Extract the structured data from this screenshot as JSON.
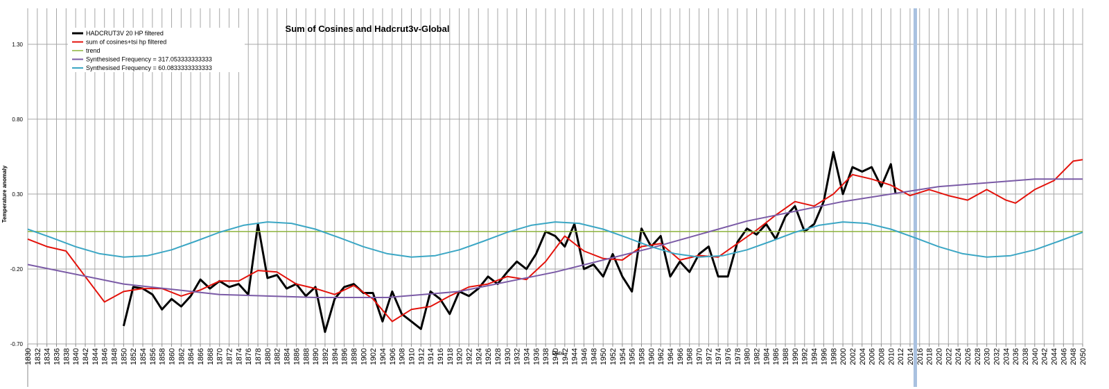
{
  "chart_data": {
    "type": "line",
    "title": "Sum of Cosines and Hadcrut3v-Global",
    "x_label": "Date",
    "y_label": "Temperature anomaly",
    "xlim": [
      1830,
      2050
    ],
    "xticks": [
      1830,
      1832,
      1834,
      1836,
      1838,
      1840,
      1842,
      1844,
      1846,
      1848,
      1850,
      1852,
      1854,
      1856,
      1858,
      1860,
      1862,
      1864,
      1866,
      1868,
      1870,
      1872,
      1874,
      1876,
      1878,
      1880,
      1882,
      1884,
      1886,
      1888,
      1890,
      1892,
      1894,
      1896,
      1898,
      1900,
      1902,
      1904,
      1906,
      1908,
      1910,
      1912,
      1914,
      1916,
      1918,
      1920,
      1922,
      1924,
      1926,
      1928,
      1930,
      1932,
      1934,
      1936,
      1938,
      1940,
      1942,
      1944,
      1946,
      1948,
      1950,
      1952,
      1954,
      1956,
      1958,
      1960,
      1962,
      1964,
      1966,
      1968,
      1970,
      1972,
      1974,
      1976,
      1978,
      1980,
      1982,
      1984,
      1986,
      1988,
      1990,
      1992,
      1994,
      1996,
      1998,
      2000,
      2002,
      2004,
      2006,
      2008,
      2010,
      2012,
      2014,
      2016,
      2018,
      2020,
      2022,
      2024,
      2026,
      2028,
      2030,
      2032,
      2034,
      2036,
      2038,
      2040,
      2042,
      2044,
      2046,
      2048,
      2050
    ],
    "ylim": [
      -0.7,
      1.54
    ],
    "yticks": [
      {
        "value": -0.7,
        "label": "-0.70"
      },
      {
        "value": -0.2,
        "label": "-0.20"
      },
      {
        "value": 0.3,
        "label": "0.30"
      },
      {
        "value": 0.8,
        "label": "0.80"
      },
      {
        "value": 1.3,
        "label": "1.30"
      }
    ],
    "grid": true,
    "legend": "upper left",
    "series": [
      {
        "name": "HADCRUT3V 20  HP filtered",
        "color": "#000000",
        "width": 3,
        "x": [
          1850,
          1852,
          1854,
          1856,
          1858,
          1860,
          1862,
          1864,
          1866,
          1868,
          1870,
          1872,
          1874,
          1876,
          1878,
          1880,
          1882,
          1884,
          1886,
          1888,
          1890,
          1892,
          1894,
          1896,
          1898,
          1900,
          1902,
          1904,
          1906,
          1908,
          1910,
          1912,
          1914,
          1916,
          1918,
          1920,
          1922,
          1924,
          1926,
          1928,
          1930,
          1932,
          1934,
          1936,
          1938,
          1940,
          1942,
          1944,
          1946,
          1948,
          1950,
          1952,
          1954,
          1956,
          1958,
          1960,
          1962,
          1964,
          1966,
          1968,
          1970,
          1972,
          1974,
          1976,
          1978,
          1980,
          1982,
          1984,
          1986,
          1988,
          1990,
          1992,
          1994,
          1996,
          1998,
          2000,
          2002,
          2004,
          2006,
          2008,
          2010,
          2011
        ],
        "values": [
          -0.58,
          -0.32,
          -0.33,
          -0.37,
          -0.47,
          -0.4,
          -0.45,
          -0.38,
          -0.27,
          -0.33,
          -0.28,
          -0.32,
          -0.3,
          -0.37,
          0.1,
          -0.26,
          -0.24,
          -0.33,
          -0.3,
          -0.38,
          -0.32,
          -0.62,
          -0.4,
          -0.32,
          -0.3,
          -0.36,
          -0.36,
          -0.55,
          -0.35,
          -0.5,
          -0.55,
          -0.6,
          -0.35,
          -0.4,
          -0.5,
          -0.35,
          -0.38,
          -0.33,
          -0.25,
          -0.3,
          -0.22,
          -0.15,
          -0.2,
          -0.1,
          0.05,
          0.02,
          -0.05,
          0.1,
          -0.2,
          -0.17,
          -0.25,
          -0.1,
          -0.25,
          -0.35,
          0.07,
          -0.05,
          0.02,
          -0.25,
          -0.15,
          -0.22,
          -0.1,
          -0.05,
          -0.25,
          -0.25,
          -0.02,
          0.07,
          0.03,
          0.1,
          0.0,
          0.15,
          0.22,
          0.05,
          0.1,
          0.25,
          0.58,
          0.3,
          0.48,
          0.45,
          0.48,
          0.35,
          0.5,
          0.3
        ]
      },
      {
        "name": "sum of cosines+tsi hp filtered",
        "color": "#e3120b",
        "width": 2,
        "x": [
          1830,
          1834,
          1838,
          1842,
          1846,
          1850,
          1854,
          1858,
          1862,
          1866,
          1870,
          1874,
          1878,
          1882,
          1886,
          1890,
          1894,
          1898,
          1902,
          1906,
          1910,
          1914,
          1918,
          1922,
          1926,
          1930,
          1934,
          1938,
          1942,
          1946,
          1950,
          1954,
          1958,
          1962,
          1966,
          1970,
          1974,
          1978,
          1982,
          1986,
          1990,
          1994,
          1998,
          2002,
          2006,
          2010,
          2014,
          2018,
          2022,
          2026,
          2030,
          2034,
          2036,
          2040,
          2044,
          2048,
          2050
        ],
        "values": [
          0.0,
          -0.05,
          -0.08,
          -0.25,
          -0.42,
          -0.35,
          -0.33,
          -0.33,
          -0.38,
          -0.34,
          -0.28,
          -0.28,
          -0.21,
          -0.22,
          -0.3,
          -0.33,
          -0.37,
          -0.31,
          -0.4,
          -0.55,
          -0.47,
          -0.45,
          -0.38,
          -0.32,
          -0.3,
          -0.25,
          -0.27,
          -0.15,
          0.02,
          -0.08,
          -0.13,
          -0.14,
          -0.05,
          -0.03,
          -0.14,
          -0.11,
          -0.12,
          -0.03,
          0.06,
          0.16,
          0.25,
          0.22,
          0.3,
          0.43,
          0.4,
          0.36,
          0.29,
          0.33,
          0.29,
          0.26,
          0.33,
          0.26,
          0.24,
          0.33,
          0.39,
          0.52,
          0.53
        ]
      },
      {
        "name": "trend",
        "color": "#8cb33a",
        "width": 1.5,
        "x": [
          1830,
          2050
        ],
        "values": [
          0.05,
          0.05
        ]
      },
      {
        "name": "Synthesised Frequency = 317.053333333333",
        "color": "#7a5aa6",
        "width": 2,
        "x": [
          1830,
          1850,
          1870,
          1890,
          1905,
          1920,
          1940,
          1960,
          1980,
          2000,
          2020,
          2040,
          2050
        ],
        "values": [
          -0.17,
          -0.3,
          -0.37,
          -0.39,
          -0.39,
          -0.35,
          -0.22,
          -0.06,
          0.12,
          0.25,
          0.35,
          0.4,
          0.4
        ]
      },
      {
        "name": "Synthesised Frequency = 60.0833333333333",
        "color": "#3aa6c4",
        "width": 2,
        "x": [
          1830,
          1835,
          1840,
          1845,
          1850,
          1855,
          1860,
          1865,
          1870,
          1875,
          1880,
          1885,
          1890,
          1895,
          1900,
          1905,
          1910,
          1915,
          1920,
          1925,
          1930,
          1935,
          1940,
          1945,
          1950,
          1955,
          1960,
          1965,
          1970,
          1975,
          1980,
          1985,
          1990,
          1995,
          2000,
          2005,
          2010,
          2015,
          2020,
          2025,
          2030,
          2035,
          2040,
          2045,
          2050
        ],
        "values": [
          0.066,
          0.009,
          -0.051,
          -0.098,
          -0.12,
          -0.111,
          -0.072,
          -0.015,
          0.045,
          0.092,
          0.114,
          0.105,
          0.066,
          0.009,
          -0.051,
          -0.098,
          -0.12,
          -0.111,
          -0.072,
          -0.015,
          0.045,
          0.092,
          0.114,
          0.105,
          0.066,
          0.009,
          -0.051,
          -0.098,
          -0.12,
          -0.111,
          -0.072,
          -0.015,
          0.045,
          0.092,
          0.114,
          0.105,
          0.066,
          0.009,
          -0.051,
          -0.098,
          -0.12,
          -0.111,
          -0.072,
          -0.015,
          0.045
        ]
      }
    ]
  }
}
